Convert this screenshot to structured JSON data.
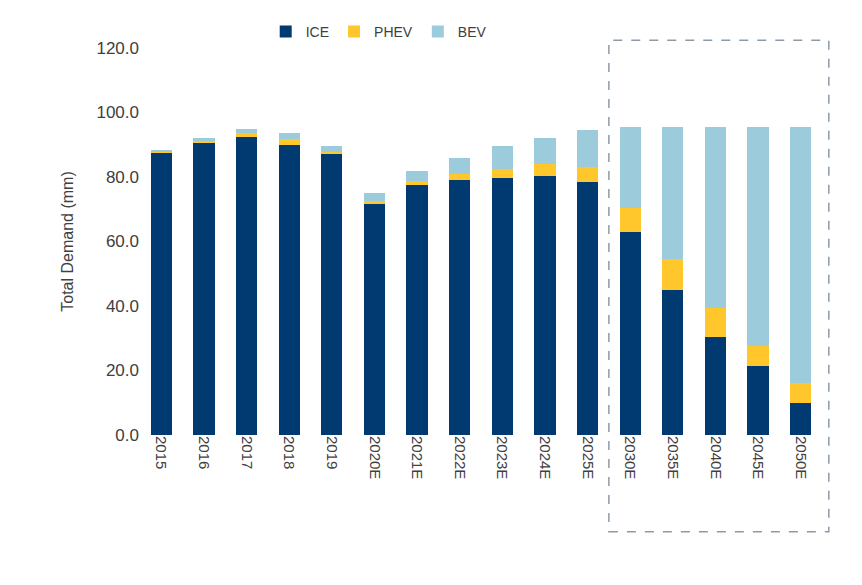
{
  "chart_data": {
    "type": "bar",
    "stacked": true,
    "y_label": "Total Demand (mm)",
    "categories": [
      "2015",
      "2016",
      "2017",
      "2018",
      "2019",
      "2020E",
      "2021E",
      "2022E",
      "2023E",
      "2024E",
      "2025E",
      "2030E",
      "2035E",
      "2040E",
      "2045E",
      "2050E"
    ],
    "series": [
      {
        "name": "ICE",
        "color": "#003a70",
        "values": [
          87.5,
          90.5,
          92.5,
          90.0,
          87.0,
          71.5,
          77.5,
          79.0,
          79.8,
          80.3,
          78.5,
          63.0,
          45.0,
          30.5,
          21.5,
          10.0
        ]
      },
      {
        "name": "PHEV",
        "color": "#ffc72c",
        "values": [
          0.3,
          0.7,
          1.0,
          1.8,
          0.8,
          1.0,
          1.3,
          2.0,
          2.7,
          3.7,
          4.7,
          7.5,
          9.5,
          9.0,
          6.0,
          6.0
        ]
      },
      {
        "name": "BEV",
        "color": "#9ccbdc",
        "values": [
          0.3,
          0.8,
          1.3,
          2.0,
          1.8,
          2.5,
          3.2,
          5.0,
          7.0,
          8.0,
          11.3,
          25.0,
          41.0,
          56.0,
          68.0,
          79.5
        ]
      }
    ],
    "ylim": [
      0,
      120
    ],
    "yticks": [
      {
        "value": 0,
        "label": "0.0"
      },
      {
        "value": 20,
        "label": "20.0"
      },
      {
        "value": 40,
        "label": "40.0"
      },
      {
        "value": 60,
        "label": "60.0"
      },
      {
        "value": 80,
        "label": "80.0"
      },
      {
        "value": 100,
        "label": "100.0"
      },
      {
        "value": 120,
        "label": "120.0"
      }
    ],
    "grid": false,
    "legend": "top"
  }
}
